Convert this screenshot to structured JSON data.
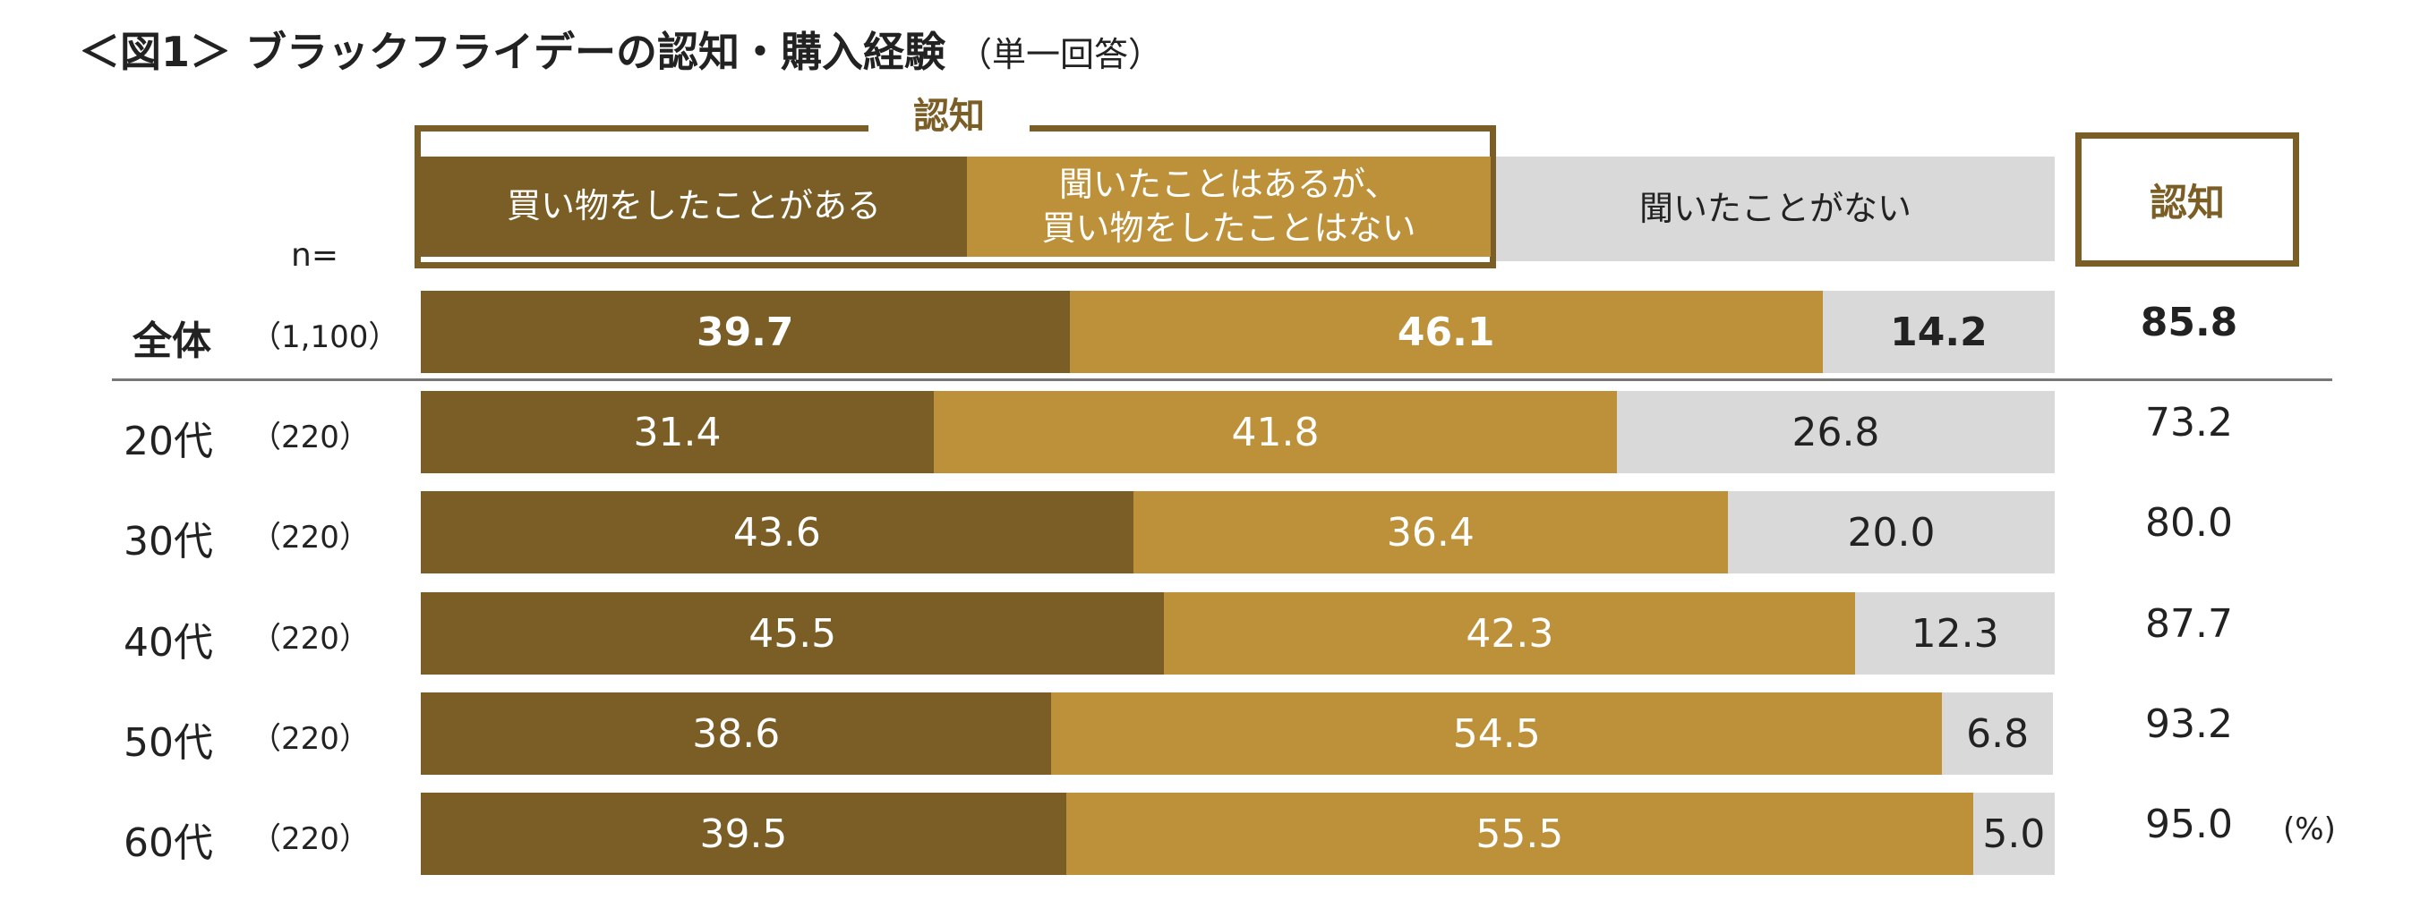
{
  "title": "＜図1＞ ブラックフライデーの認知・購入経験",
  "title_note": "（単一回答）",
  "n_label": "n=",
  "group_label": "認知",
  "right_header": "認知",
  "unit": "(%)",
  "colors": {
    "bought": "#7b5e26",
    "heard_not_bought": "#bd9139",
    "never_heard": "#d9d9d9",
    "frame": "#7b5e26"
  },
  "chart_data": {
    "type": "bar",
    "orientation": "horizontal",
    "stacked": true,
    "xlim": [
      0,
      100
    ],
    "categories": [
      "全体",
      "20代",
      "30代",
      "40代",
      "50代",
      "60代"
    ],
    "n": [
      "（1,100）",
      "（220）",
      "（220）",
      "（220）",
      "（220）",
      "（220）"
    ],
    "series": [
      {
        "name": "買い物をしたことがある",
        "values": [
          39.7,
          31.4,
          43.6,
          45.5,
          38.6,
          39.5
        ]
      },
      {
        "name": "聞いたことはあるが、\n買い物をしたことはない",
        "values": [
          46.1,
          41.8,
          36.4,
          42.3,
          54.5,
          55.5
        ]
      },
      {
        "name": "聞いたことがない",
        "values": [
          14.2,
          26.8,
          20.0,
          12.3,
          6.8,
          5.0
        ]
      }
    ],
    "labels": [
      [
        "39.7",
        "46.1",
        "14.2"
      ],
      [
        "31.4",
        "41.8",
        "26.8"
      ],
      [
        "43.6",
        "36.4",
        "20.0"
      ],
      [
        "45.5",
        "42.3",
        "12.3"
      ],
      [
        "38.6",
        "54.5",
        "6.8"
      ],
      [
        "39.5",
        "55.5",
        "5.0"
      ]
    ],
    "awareness_totals": [
      "85.8",
      "73.2",
      "80.0",
      "87.7",
      "93.2",
      "95.0"
    ]
  }
}
